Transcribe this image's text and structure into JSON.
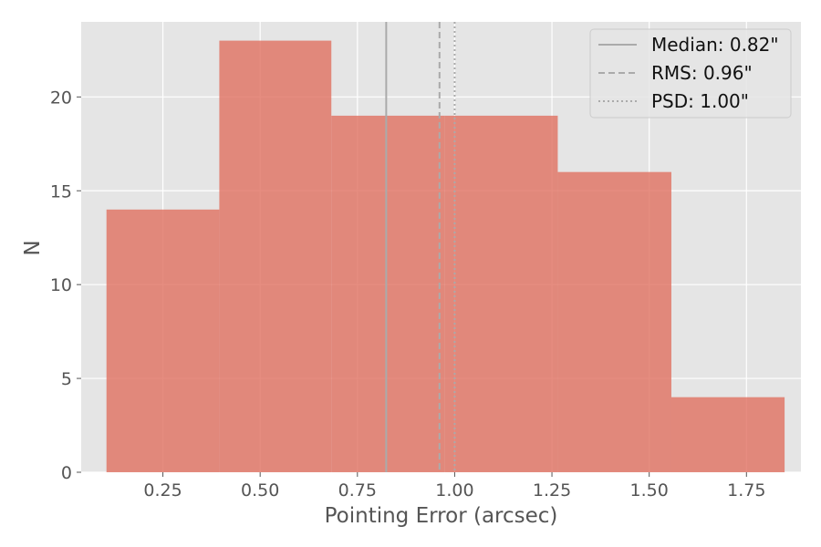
{
  "chart_data": {
    "type": "bar",
    "subtype": "histogram",
    "title": "",
    "xlabel": "Pointing Error (arcsec)",
    "ylabel": "N",
    "xlim": [
      0.04,
      1.89
    ],
    "ylim": [
      0,
      24
    ],
    "xticks": [
      "0.25",
      "0.50",
      "0.75",
      "1.00",
      "1.25",
      "1.50",
      "1.75"
    ],
    "yticks": [
      "0",
      "5",
      "10",
      "15",
      "20"
    ],
    "bins": [
      {
        "left": 0.105,
        "right": 0.395,
        "count": 14
      },
      {
        "left": 0.395,
        "right": 0.683,
        "count": 23
      },
      {
        "left": 0.683,
        "right": 0.974,
        "count": 19
      },
      {
        "left": 0.974,
        "right": 1.265,
        "count": 19
      },
      {
        "left": 1.265,
        "right": 1.557,
        "count": 16
      },
      {
        "left": 1.557,
        "right": 1.848,
        "count": 4
      }
    ],
    "reference_lines": [
      {
        "label": "Median: 0.82\"",
        "value": 0.824,
        "style": "solid"
      },
      {
        "label": "RMS: 0.96\"",
        "value": 0.961,
        "style": "dashed"
      },
      {
        "label": "PSD: 1.00\"",
        "value": 1.0,
        "style": "dotted"
      }
    ],
    "legend_position": "top-right",
    "grid": true,
    "colors": {
      "bars": "#E07060",
      "bars_opacity": 0.8,
      "plot_background": "#E5E5E5",
      "grid": "#FFFFFF",
      "reference_lines": "#AAAAAA"
    }
  }
}
